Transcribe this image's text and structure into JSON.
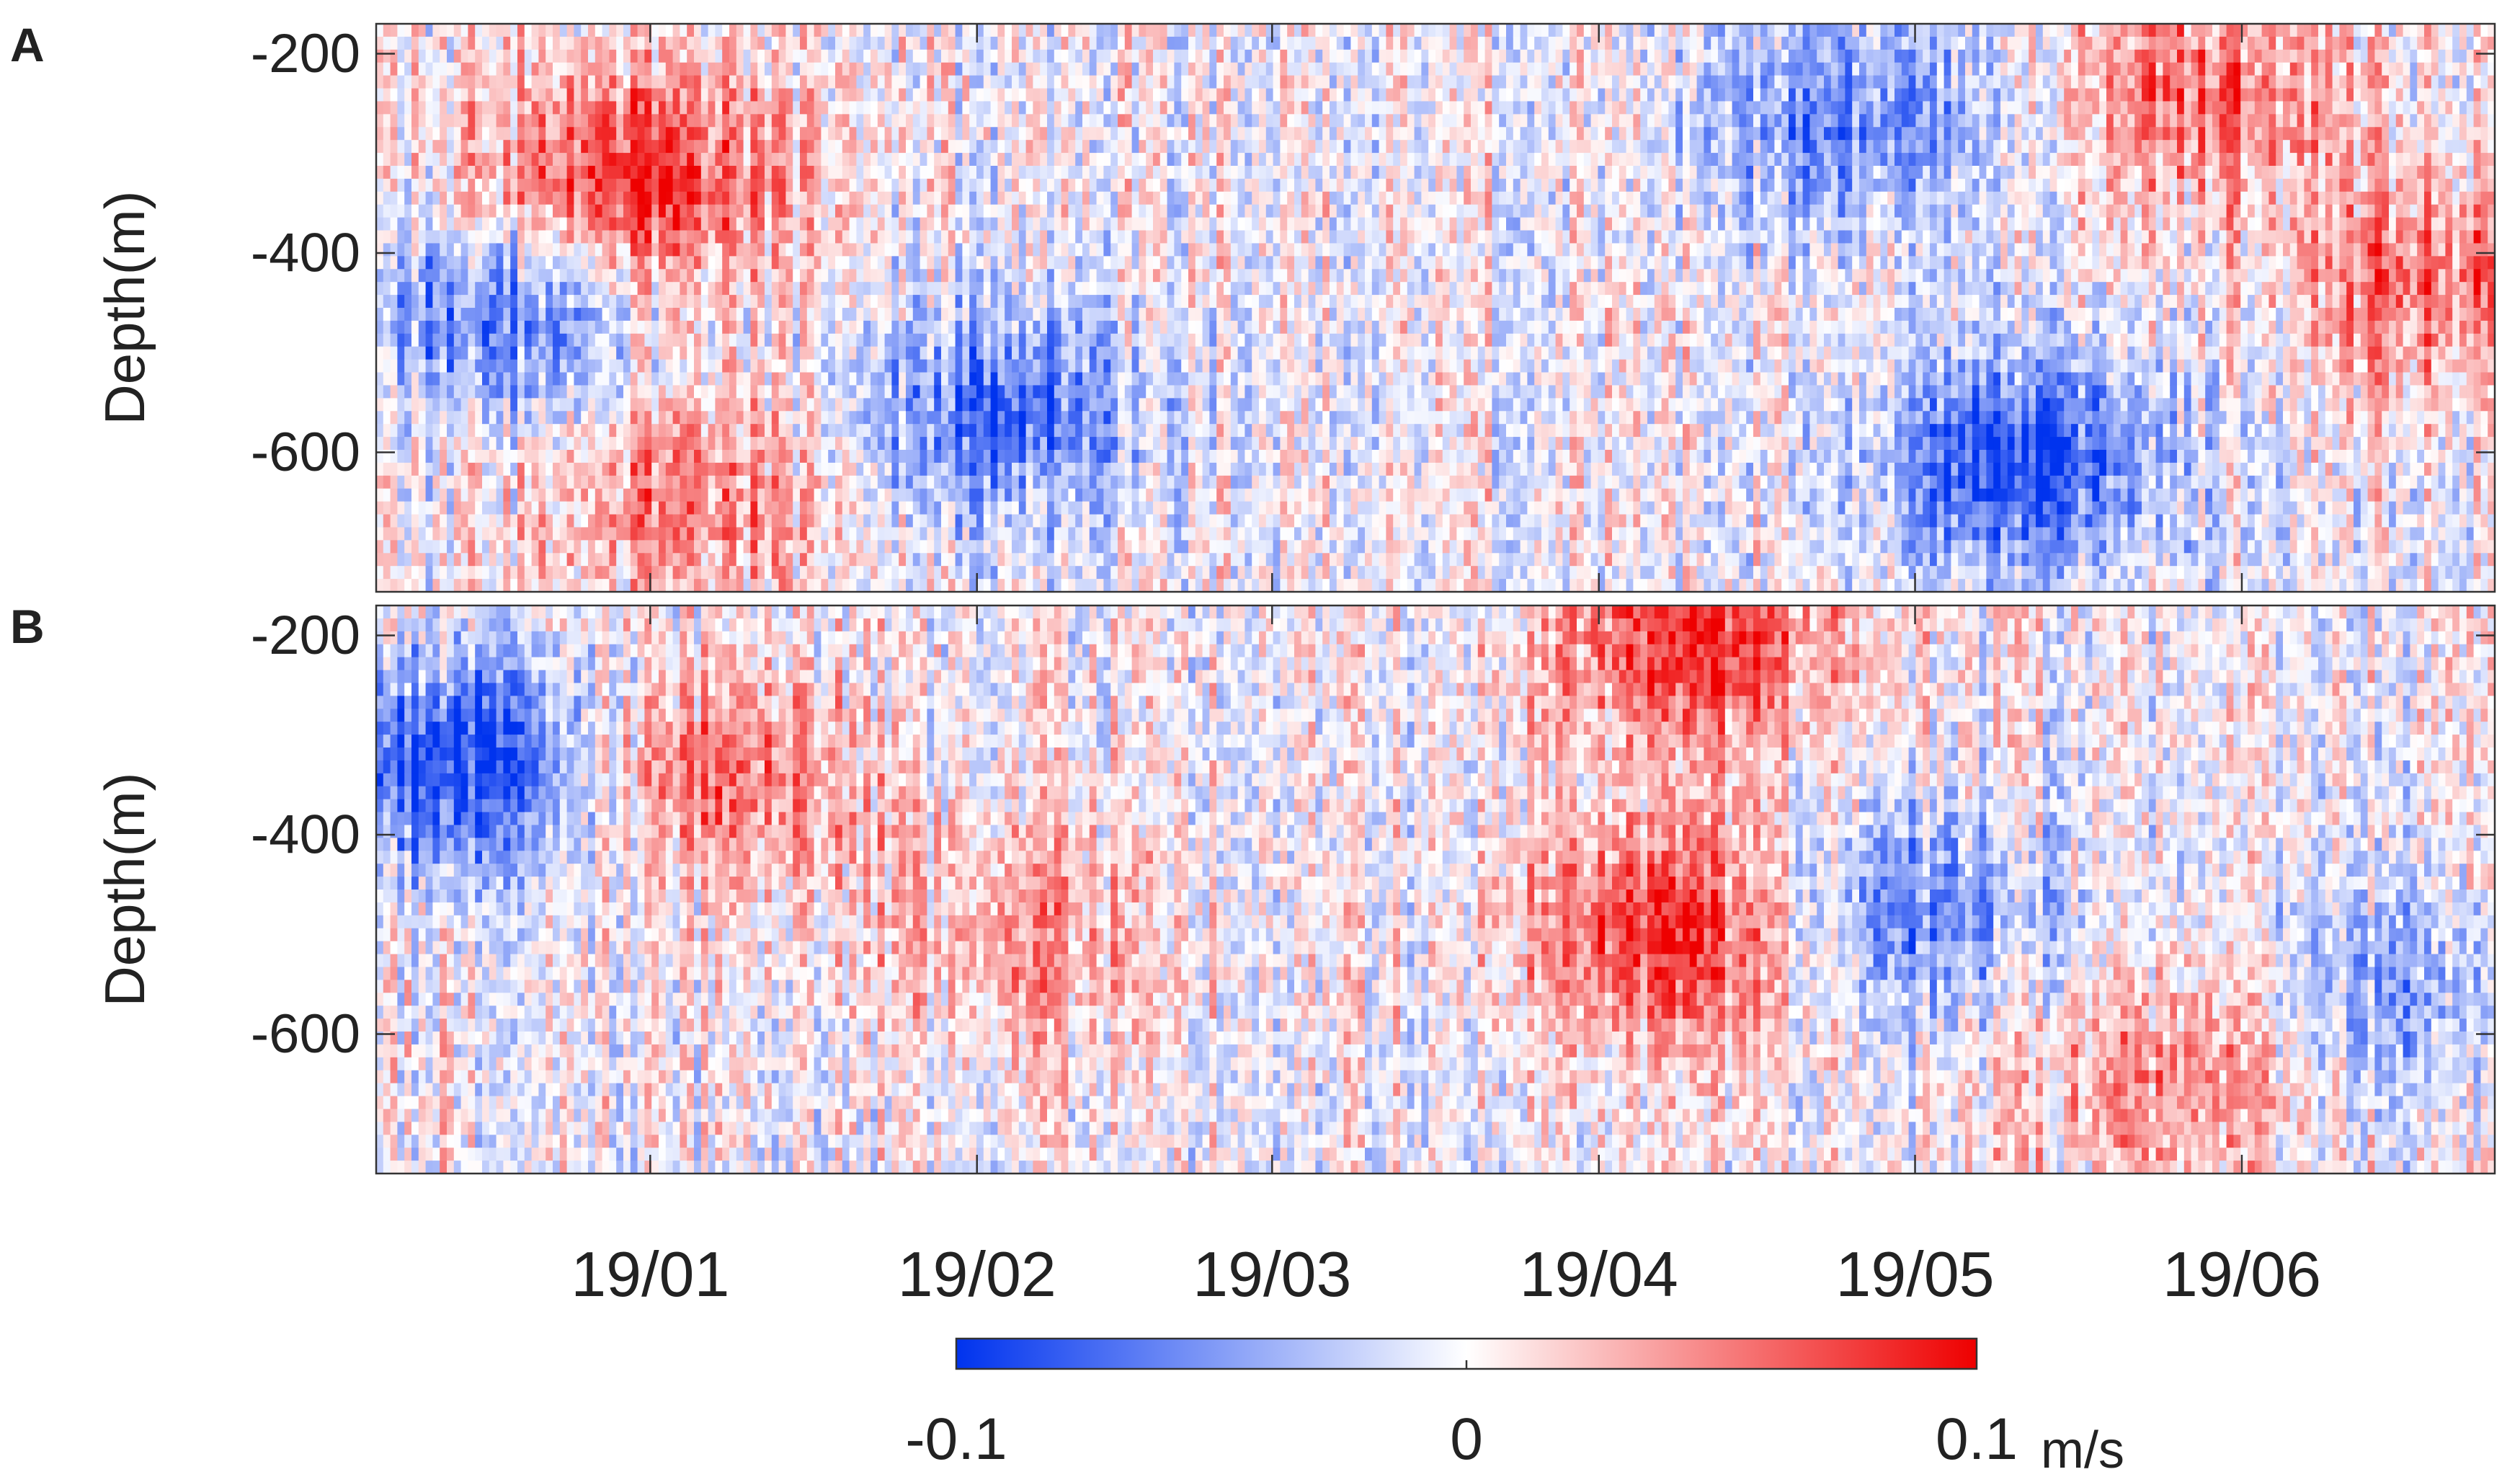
{
  "chart_data": [
    {
      "panel_label": "A",
      "type": "heatmap",
      "ylabel": "Depth(m)",
      "ylim": [
        -740,
        -170
      ],
      "y_ticks": [
        -200,
        -400,
        -600
      ],
      "x_ticks": [
        "19/01",
        "19/02",
        "19/03",
        "19/04",
        "19/05",
        "19/06"
      ],
      "xlim": [
        "2018-12-06",
        "2019-06-25"
      ],
      "colormap": "blue-white-red",
      "features": [
        {
          "kind": "positive",
          "date": "2018-12-30",
          "depth": -330,
          "value": 0.09
        },
        {
          "kind": "negative",
          "date": "2018-12-18",
          "depth": -460,
          "value": -0.07
        },
        {
          "kind": "negative",
          "date": "2019-02-03",
          "depth": -560,
          "value": -0.07
        },
        {
          "kind": "negative",
          "date": "2019-05-11",
          "depth": -610,
          "value": -0.09
        },
        {
          "kind": "negative",
          "date": "2019-04-25",
          "depth": -260,
          "value": -0.06
        },
        {
          "kind": "positive",
          "date": "2019-05-29",
          "depth": -240,
          "value": 0.06
        },
        {
          "kind": "positive",
          "date": "2019-06-19",
          "depth": -430,
          "value": 0.06
        },
        {
          "kind": "positive",
          "date": "2019-01-04",
          "depth": -640,
          "value": 0.05
        }
      ]
    },
    {
      "panel_label": "B",
      "type": "heatmap",
      "ylabel": "Depth(m)",
      "ylim": [
        -740,
        -170
      ],
      "y_ticks": [
        -200,
        -400,
        -600
      ],
      "x_ticks": [
        "19/01",
        "19/02",
        "19/03",
        "19/04",
        "19/05",
        "19/06"
      ],
      "xlim": [
        "2018-12-06",
        "2019-06-25"
      ],
      "colormap": "blue-white-red",
      "features": [
        {
          "kind": "negative",
          "date": "2018-12-14",
          "depth": -330,
          "value": -0.09
        },
        {
          "kind": "positive",
          "date": "2019-01-08",
          "depth": -340,
          "value": 0.06
        },
        {
          "kind": "positive",
          "date": "2019-04-10",
          "depth": -200,
          "value": 0.08
        },
        {
          "kind": "positive",
          "date": "2019-04-08",
          "depth": -500,
          "value": 0.08
        },
        {
          "kind": "negative",
          "date": "2019-05-01",
          "depth": -480,
          "value": -0.06
        },
        {
          "kind": "positive",
          "date": "2019-02-05",
          "depth": -500,
          "value": 0.04
        },
        {
          "kind": "positive",
          "date": "2019-05-25",
          "depth": -640,
          "value": 0.05
        },
        {
          "kind": "negative",
          "date": "2019-06-16",
          "depth": -560,
          "value": -0.04
        }
      ]
    }
  ],
  "colorbar": {
    "min": -0.1,
    "max": 0.1,
    "tick_labels": [
      "-0.1",
      "0",
      "0.1"
    ],
    "unit": "m/s",
    "colors": {
      "negative": "#0033ee",
      "zero": "#ffffff",
      "positive": "#ee0000"
    }
  }
}
